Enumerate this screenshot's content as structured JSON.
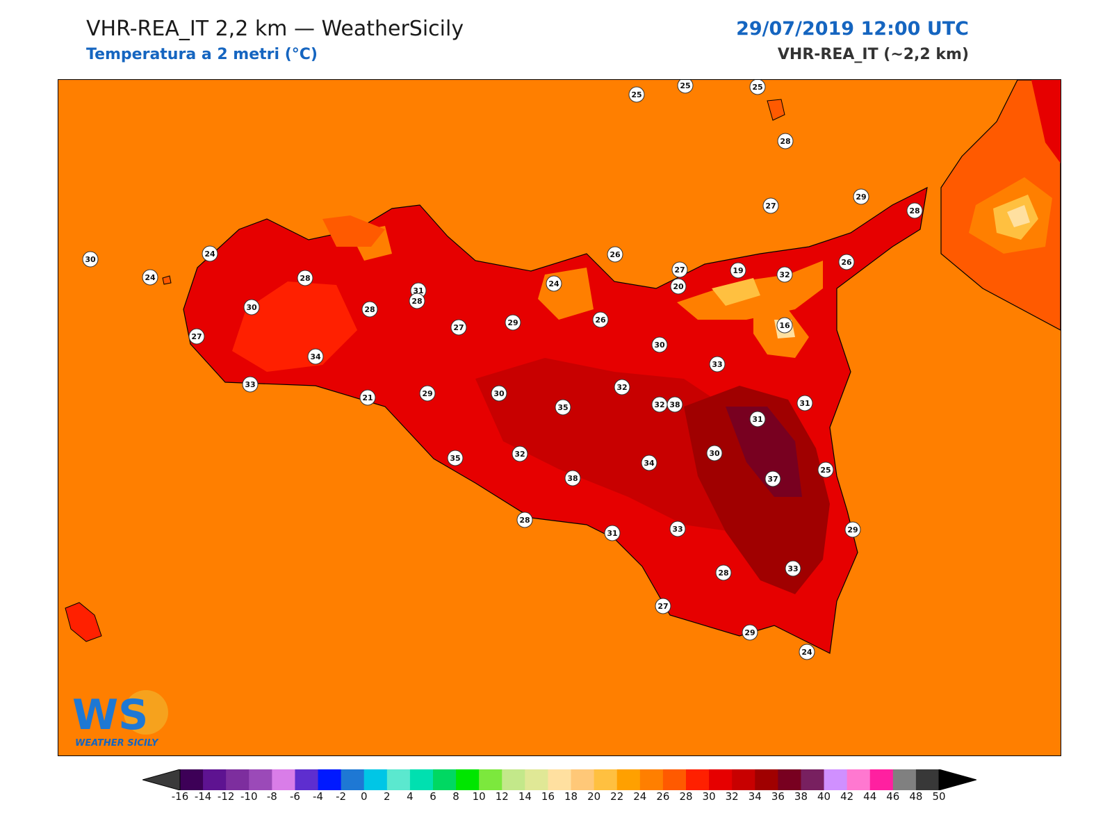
{
  "header": {
    "title": "VHR-REA_IT 2,2 km — WeatherSicily",
    "subtitle": "Temperatura a 2 metri (°C)",
    "datetime": "29/07/2019 12:00 UTC",
    "model": "VHR-REA_IT (~2,2 km)"
  },
  "logo": {
    "initials": "WS",
    "name": "WEATHER SICILY"
  },
  "colorbar": {
    "ticks": [
      "-16",
      "-14",
      "-12",
      "-10",
      "-8",
      "-6",
      "-4",
      "-2",
      "0",
      "2",
      "4",
      "6",
      "8",
      "10",
      "12",
      "14",
      "16",
      "18",
      "20",
      "22",
      "24",
      "26",
      "28",
      "30",
      "32",
      "34",
      "36",
      "38",
      "40",
      "42",
      "44",
      "46",
      "48",
      "50"
    ],
    "colors": [
      "#3d0057",
      "#5e1391",
      "#7d2e9e",
      "#9b4ab8",
      "#d97de8",
      "#5e2ecf",
      "#0019ff",
      "#1e78d4",
      "#00c6e6",
      "#5be8cf",
      "#00e0b0",
      "#00d862",
      "#00e600",
      "#7ce83d",
      "#c3e88a",
      "#e0e896",
      "#ffe0a0",
      "#ffc878",
      "#ffc040",
      "#ffa000",
      "#ff7f00",
      "#ff5a00",
      "#ff2000",
      "#e60000",
      "#c80000",
      "#a00000",
      "#780020",
      "#782060",
      "#d090ff",
      "#ff78d0",
      "#ff20a0",
      "#808080",
      "#383838"
    ]
  },
  "stations": [
    {
      "t": "25",
      "x": 26.9,
      "y": 13.1
    },
    {
      "t": "25",
      "x": 27.5,
      "y": 13.2
    },
    {
      "t": "25",
      "x": 28.0,
      "y": 13.2
    },
    {
      "t": "28",
      "x": 28.2,
      "y": 12.9
    },
    {
      "t": "29",
      "x": 29.3,
      "y": 12.6
    },
    {
      "t": "28",
      "x": 29.2,
      "y": 13.3
    },
    {
      "t": "27",
      "x": 28.0,
      "y": 12.6
    },
    {
      "t": "26",
      "x": 29.3,
      "y": 12.5
    },
    {
      "t": "26",
      "x": 26.9,
      "y": 12.1
    },
    {
      "t": "27",
      "x": 28.0,
      "y": 12.3
    },
    {
      "t": "32",
      "x": 28.4,
      "y": 12.5
    },
    {
      "t": "30",
      "x": 28.0,
      "y": 12.7
    },
    {
      "t": "24",
      "x": 26.6,
      "y": 11.9
    },
    {
      "t": "24",
      "x": 27.3,
      "y": 12.1
    },
    {
      "t": "28",
      "x": 27.5,
      "y": 11.9
    },
    {
      "t": "30",
      "x": 27.8,
      "y": 12.3
    },
    {
      "t": "28",
      "x": 27.8,
      "y": 12.0
    },
    {
      "t": "31",
      "x": 27.9,
      "y": 12.4
    },
    {
      "t": "27",
      "x": 28.6,
      "y": 12.6
    },
    {
      "t": "28",
      "x": 27.9,
      "y": 11.9
    },
    {
      "t": "29",
      "x": 28.1,
      "y": 12.4
    },
    {
      "t": "27",
      "x": 27.7,
      "y": 12.1
    },
    {
      "t": "34",
      "x": 28.3,
      "y": 12.7
    },
    {
      "t": "33",
      "x": 28.7,
      "y": 12.9
    },
    {
      "t": "21",
      "x": 28.8,
      "y": 13.3
    },
    {
      "t": "29",
      "x": 28.9,
      "y": 12.8
    },
    {
      "t": "26",
      "x": 29.0,
      "y": 13.3
    },
    {
      "t": "24",
      "x": 28.6,
      "y": 13.6
    },
    {
      "t": "26",
      "x": 28.8,
      "y": 13.8
    },
    {
      "t": "20",
      "x": 28.6,
      "y": 14.0
    },
    {
      "t": "19",
      "x": 28.6,
      "y": 14.3
    },
    {
      "t": "16",
      "x": 28.0,
      "y": 14.6
    },
    {
      "t": "30",
      "x": 29.5,
      "y": 14.1
    },
    {
      "t": "33",
      "x": 29.4,
      "y": 14.3
    },
    {
      "t": "32",
      "x": 28.2,
      "y": 13.1
    },
    {
      "t": "32",
      "x": 28.4,
      "y": 13.5
    },
    {
      "t": "30",
      "x": 29.3,
      "y": 13.9
    },
    {
      "t": "35",
      "x": 29.0,
      "y": 14.3
    },
    {
      "t": "38",
      "x": 29.6,
      "y": 14.7
    },
    {
      "t": "31",
      "x": 29.6,
      "y": 15.0
    },
    {
      "t": "31",
      "x": 29.4,
      "y": 13.1
    },
    {
      "t": "30",
      "x": 29.6,
      "y": 12.9
    },
    {
      "t": "37",
      "x": 29.6,
      "y": 14.6
    },
    {
      "t": "35",
      "x": 28.6,
      "y": 14.1
    },
    {
      "t": "32",
      "x": 28.6,
      "y": 13.5
    },
    {
      "t": "38",
      "x": 29.5,
      "y": 14.8
    },
    {
      "t": "34",
      "x": 29.5,
      "y": 15.1
    },
    {
      "t": "25",
      "x": 28.7,
      "y": 13.2
    },
    {
      "t": "28",
      "x": 29.4,
      "y": 13.8
    },
    {
      "t": "31",
      "x": 28.8,
      "y": 14.2
    },
    {
      "t": "33",
      "x": 29.1,
      "y": 15.2
    },
    {
      "t": "29",
      "x": 28.5,
      "y": 14.6
    },
    {
      "t": "33",
      "x": 29.3,
      "y": 14.9
    },
    {
      "t": "28",
      "x": 28.3,
      "y": 14.3
    },
    {
      "t": "27",
      "x": 28.7,
      "y": 14.8
    },
    {
      "t": "29",
      "x": 28.7,
      "y": 15.0
    },
    {
      "t": "24",
      "x": 28.3,
      "y": 11.6
    }
  ]
}
